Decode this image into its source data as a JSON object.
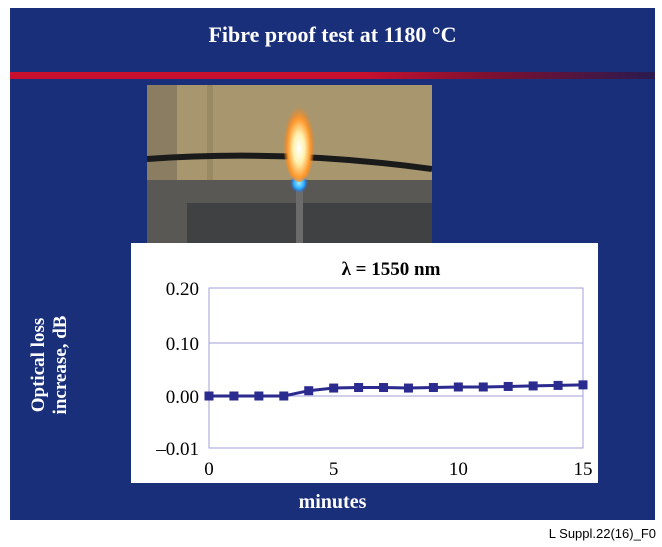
{
  "slide": {
    "title": "Fibre proof test at 1180 °C",
    "figure_code": "L Suppl.22(16)_F0",
    "photo_subject": "flame heating fibre"
  },
  "colors": {
    "slide_background": "#1a2f7a",
    "accent_bar": "#c8102e",
    "series": "#2b2a8f",
    "plot_border": "#a0a0d8"
  },
  "chart_data": {
    "type": "line",
    "title": "λ = 1550 nm",
    "xlabel": "minutes",
    "ylabel_lines": [
      "Optical loss",
      "increase, dB"
    ],
    "y_ticks": [
      0.2,
      0.1,
      0.0,
      -0.01
    ],
    "y_tick_labels": [
      "0.20",
      "0.10",
      "0.00",
      "–0.01"
    ],
    "x_ticks": [
      0,
      5,
      10,
      15
    ],
    "x_tick_labels": [
      "0",
      "5",
      "10",
      "15"
    ],
    "xlim": [
      0,
      15
    ],
    "grid": "horizontal",
    "series": [
      {
        "x": [
          0,
          1,
          2,
          3,
          4,
          5,
          6,
          7,
          8,
          9,
          10,
          11,
          12,
          13,
          14,
          15
        ],
        "values": [
          0.0,
          0.0,
          0.0,
          0.0,
          0.01,
          0.015,
          0.016,
          0.016,
          0.015,
          0.016,
          0.017,
          0.017,
          0.018,
          0.019,
          0.02,
          0.021
        ]
      }
    ]
  }
}
